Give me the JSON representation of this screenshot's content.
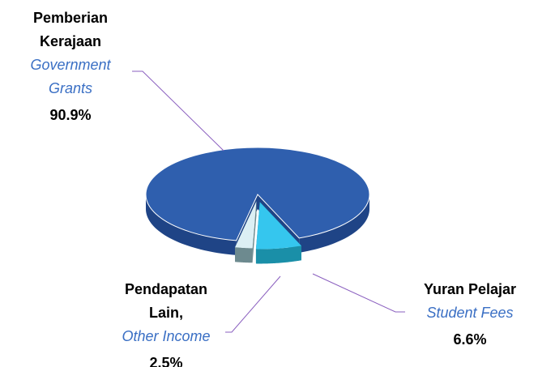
{
  "chart_data": {
    "type": "pie3d",
    "categories": [
      "Pemberian Kerajaan",
      "Yuran Pelajar",
      "Pendapatan Lain,"
    ],
    "categories_en": [
      "Government Grants",
      "Student Fees",
      "Other Income"
    ],
    "values": [
      90.9,
      6.6,
      2.5
    ],
    "value_labels": [
      "90.9%",
      "6.6%",
      "2.5%"
    ],
    "colors": [
      "#2f5fae",
      "#35c6ee",
      "#dceff4"
    ],
    "side_colors": [
      "#1f4486",
      "#1a8fa8",
      "#6d8a8f"
    ]
  }
}
